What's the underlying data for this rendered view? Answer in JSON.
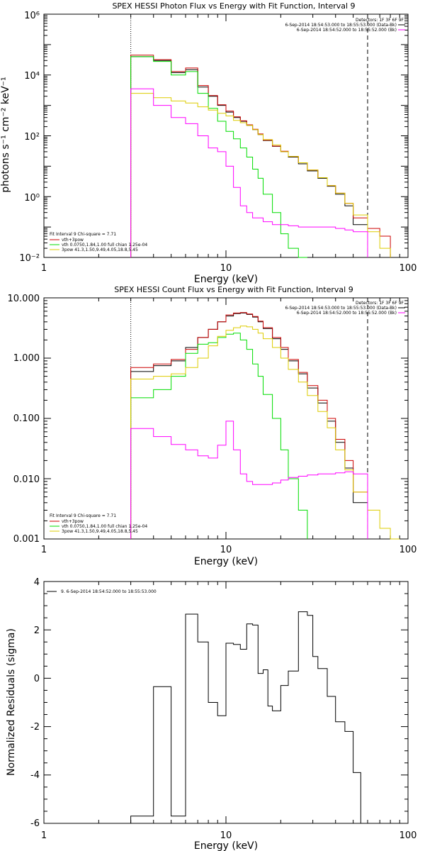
{
  "chart_data": [
    {
      "type": "line",
      "title": "SPEX HESSI Photon Flux vs Energy with Fit Function, Interval 9",
      "xlabel": "Energy (keV)",
      "ylabel": "photons s⁻¹ cm⁻² keV⁻¹",
      "xscale": "log",
      "yscale": "log",
      "xlim": [
        1,
        100
      ],
      "ylim": [
        0.01,
        1000000
      ],
      "xticks": [
        "1",
        "10",
        "100"
      ],
      "yticks": [
        "10⁻²",
        "10⁰",
        "10²",
        "10⁴",
        "10⁶"
      ],
      "legend_top": [
        "Detectors: 1F 3F 6F 9F",
        "6-Sep-2014 18:54:53.000 to 18:55:53.000 (Data-Bk)",
        "6-Sep-2014 18:54:52.000 to 18:55:52.000 (Bk)"
      ],
      "legend_bottom": [
        "Fit Interval 9   Chi-square = 7.71",
        "vth+3pow",
        "vth 0.0750,1.84,1.00  full chian 1.25e-04",
        "3pow 41.3,1.50,9.49,4.05,18.8,5.45"
      ],
      "vlines": [
        3,
        60
      ],
      "series": [
        {
          "name": "Data-Bk",
          "color": "#000000",
          "edges": [
            3,
            4,
            5,
            6,
            7,
            8,
            9,
            10,
            11,
            12,
            13,
            14,
            15,
            16,
            18,
            20,
            22,
            25,
            28,
            32,
            36,
            40,
            45,
            50,
            60
          ],
          "values": [
            40000,
            30000,
            12000,
            15000,
            4000,
            2000,
            1000,
            600,
            400,
            300,
            220,
            160,
            110,
            70,
            45,
            30,
            20,
            12,
            7,
            4,
            2.2,
            1.2,
            0.5,
            0.12
          ]
        },
        {
          "name": "vth+3pow",
          "color": "#cc0000",
          "edges": [
            3,
            4,
            5,
            6,
            7,
            8,
            9,
            10,
            11,
            12,
            13,
            14,
            15,
            16,
            18,
            20,
            22,
            25,
            28,
            32,
            36,
            40,
            45,
            50,
            60,
            70,
            80
          ],
          "values": [
            45000,
            32000,
            13000,
            17000,
            4500,
            2100,
            1050,
            650,
            420,
            310,
            230,
            165,
            115,
            72,
            46,
            31,
            21,
            13,
            7.5,
            4.2,
            2.3,
            1.3,
            0.6,
            0.2,
            0.09,
            0.05
          ]
        },
        {
          "name": "vth",
          "color": "#00dd00",
          "edges": [
            3,
            4,
            5,
            6,
            7,
            8,
            9,
            10,
            11,
            12,
            13,
            14,
            15,
            16,
            18,
            20,
            22,
            25,
            28
          ],
          "values": [
            40000,
            28000,
            10000,
            13000,
            2500,
            800,
            300,
            140,
            80,
            40,
            20,
            8,
            4,
            1.2,
            0.3,
            0.06,
            0.02,
            0.005
          ]
        },
        {
          "name": "3pow",
          "color": "#ddcc00",
          "edges": [
            3,
            4,
            5,
            6,
            7,
            8,
            9,
            10,
            11,
            12,
            13,
            14,
            15,
            16,
            18,
            20,
            22,
            25,
            28,
            32,
            36,
            40,
            45,
            50,
            60,
            70,
            80
          ],
          "values": [
            2500,
            1800,
            1400,
            1200,
            900,
            700,
            550,
            450,
            320,
            270,
            220,
            160,
            110,
            75,
            50,
            30,
            21,
            13,
            7.5,
            4.2,
            2.3,
            1.3,
            0.6,
            0.25,
            0.07,
            0.02
          ]
        },
        {
          "name": "Bk",
          "color": "#ff00ff",
          "edges": [
            3,
            4,
            5,
            6,
            7,
            8,
            9,
            10,
            11,
            12,
            13,
            14,
            16,
            18,
            20,
            22,
            25,
            28,
            32,
            36,
            40,
            45,
            50,
            60
          ],
          "values": [
            3500,
            1000,
            400,
            250,
            100,
            40,
            30,
            10,
            2,
            0.5,
            0.3,
            0.2,
            0.15,
            0.12,
            0.12,
            0.11,
            0.1,
            0.1,
            0.1,
            0.1,
            0.09,
            0.08,
            0.07
          ]
        }
      ]
    },
    {
      "type": "line",
      "title": "SPEX HESSI Count Flux vs Energy with Fit Function, Interval 9",
      "xlabel": "Energy (keV)",
      "ylabel": "",
      "xscale": "log",
      "yscale": "log",
      "xlim": [
        1,
        100
      ],
      "ylim": [
        0.001,
        10
      ],
      "xticks": [
        "1",
        "10",
        "100"
      ],
      "yticks": [
        "0.001",
        "0.010",
        "0.100",
        "1.000",
        "10.000"
      ],
      "legend_top": [
        "Detectors: 1F 3F 6F 9F",
        "6-Sep-2014 18:54:53.000 to 18:55:53.000 (Data-Bk)",
        "6-Sep-2014 18:54:52.000 to 18:55:52.000 (Bk)"
      ],
      "legend_bottom": [
        "Fit Interval 9   Chi-square = 7.71",
        "vth+3pow",
        "vth 0.0750,1.84,1.00  full chian 1.25e-04",
        "3pow 41.3,1.50,9.49,4.05,18.8,5.45"
      ],
      "vlines": [
        3,
        60
      ],
      "series": [
        {
          "name": "Data-Bk",
          "color": "#000000",
          "edges": [
            3,
            4,
            5,
            6,
            7,
            8,
            9,
            10,
            11,
            12,
            13,
            14,
            15,
            16,
            18,
            20,
            22,
            25,
            28,
            32,
            36,
            40,
            45,
            50,
            60
          ],
          "values": [
            0.6,
            0.75,
            0.9,
            1.5,
            2.2,
            3.0,
            4.0,
            5.0,
            5.5,
            5.6,
            5.3,
            4.8,
            4.0,
            3.1,
            2.1,
            1.4,
            0.9,
            0.55,
            0.32,
            0.18,
            0.09,
            0.04,
            0.015,
            0.004
          ]
        },
        {
          "name": "vth+3pow",
          "color": "#cc0000",
          "edges": [
            3,
            4,
            5,
            6,
            7,
            8,
            9,
            10,
            11,
            12,
            13,
            14,
            15,
            16,
            18,
            20,
            22,
            25,
            28,
            32,
            36,
            40,
            45,
            50,
            60
          ],
          "values": [
            0.7,
            0.8,
            0.95,
            1.4,
            2.2,
            3.0,
            4.0,
            5.2,
            5.6,
            5.7,
            5.4,
            4.9,
            4.1,
            3.2,
            2.2,
            1.5,
            0.95,
            0.58,
            0.35,
            0.2,
            0.1,
            0.045,
            0.02,
            0.006
          ]
        },
        {
          "name": "vth",
          "color": "#00dd00",
          "edges": [
            3,
            4,
            5,
            6,
            7,
            8,
            9,
            10,
            11,
            12,
            13,
            14,
            15,
            16,
            18,
            20,
            22,
            25,
            28
          ],
          "values": [
            0.22,
            0.3,
            0.5,
            1.2,
            1.7,
            1.8,
            2.2,
            2.5,
            2.6,
            2.0,
            1.4,
            0.8,
            0.5,
            0.25,
            0.1,
            0.03,
            0.01,
            0.003
          ]
        },
        {
          "name": "3pow",
          "color": "#ddcc00",
          "edges": [
            3,
            4,
            5,
            6,
            7,
            8,
            9,
            10,
            11,
            12,
            13,
            14,
            15,
            16,
            18,
            20,
            22,
            25,
            28,
            32,
            36,
            40,
            45,
            50,
            60,
            70,
            80,
            90
          ],
          "values": [
            0.45,
            0.5,
            0.55,
            0.7,
            1.0,
            1.6,
            2.3,
            2.9,
            3.2,
            3.4,
            3.3,
            3.0,
            2.6,
            2.1,
            1.5,
            1.0,
            0.65,
            0.4,
            0.24,
            0.13,
            0.07,
            0.03,
            0.014,
            0.006,
            0.003,
            0.0015,
            0.001
          ]
        },
        {
          "name": "Bk",
          "color": "#ff00ff",
          "edges": [
            3,
            4,
            5,
            6,
            7,
            8,
            9,
            10,
            11,
            12,
            13,
            14,
            16,
            18,
            20,
            22,
            25,
            28,
            32,
            36,
            40,
            45,
            50,
            60
          ],
          "values": [
            0.068,
            0.05,
            0.037,
            0.03,
            0.024,
            0.022,
            0.036,
            0.09,
            0.03,
            0.012,
            0.009,
            0.008,
            0.008,
            0.0085,
            0.0095,
            0.0105,
            0.011,
            0.0115,
            0.012,
            0.012,
            0.0125,
            0.013,
            0.012
          ]
        }
      ]
    },
    {
      "type": "line",
      "title": "",
      "xlabel": "Energy (keV)",
      "ylabel": "Normalized Residuals (sigma)",
      "xscale": "log",
      "yscale": "linear",
      "xlim": [
        1,
        100
      ],
      "ylim": [
        -6,
        4
      ],
      "xticks": [
        "1",
        "10",
        "100"
      ],
      "yticks": [
        "-6",
        "-4",
        "-2",
        "0",
        "2",
        "4"
      ],
      "legend_top": [
        "9. 6-Sep-2014 18:54:52.000 to 18:55:53.000"
      ],
      "series": [
        {
          "name": "9. 6-Sep-2014 18:54:52.000 to 18:55:53.000",
          "color": "#000000",
          "edges": [
            3,
            4,
            5,
            6,
            7,
            8,
            9,
            10,
            11,
            12,
            13,
            14,
            15,
            16,
            17,
            18,
            20,
            22,
            25,
            28,
            30,
            32,
            36,
            40,
            45,
            50,
            55,
            60
          ],
          "values": [
            -5.7,
            -0.35,
            -5.7,
            2.65,
            1.5,
            -1.0,
            -1.55,
            1.45,
            1.4,
            1.2,
            2.25,
            2.2,
            0.2,
            0.35,
            -1.15,
            -1.35,
            -0.3,
            0.3,
            2.75,
            2.6,
            0.9,
            0.4,
            -0.75,
            -1.8,
            -2.2,
            -3.9,
            -6
          ]
        }
      ]
    }
  ]
}
